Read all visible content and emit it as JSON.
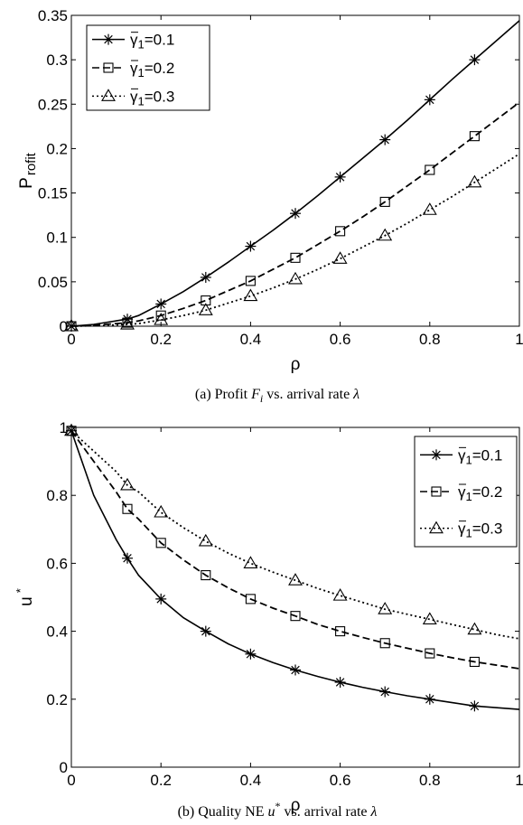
{
  "chart_data": [
    {
      "type": "line",
      "caption": "(a) Profit F_i vs. arrival rate λ",
      "caption_parts": {
        "prefix": "(a)  Profit ",
        "var": "F",
        "sub": "i",
        "suffix": " vs. arrival rate ",
        "lambda": "λ"
      },
      "xlabel": "ρ",
      "ylabel": "Profit",
      "ylabel_parts": {
        "first": "P",
        "rest": "rofit"
      },
      "xlim": [
        0,
        1
      ],
      "ylim": [
        0,
        0.35
      ],
      "xticks": [
        0,
        0.2,
        0.4,
        0.6,
        0.8,
        1
      ],
      "xtick_labels": [
        "0",
        "0.2",
        "0.4",
        "0.6",
        "0.8",
        "1"
      ],
      "yticks": [
        0,
        0.05,
        0.1,
        0.15,
        0.2,
        0.25,
        0.3,
        0.35
      ],
      "ytick_labels": [
        "0",
        "0.05",
        "0.1",
        "0.15",
        "0.2",
        "0.25",
        "0.3",
        "0.35"
      ],
      "legend_position": "top-left",
      "series": [
        {
          "name": "γ̄1=0.1",
          "legend": {
            "sym": "γ",
            "sub": "1",
            "val": "=0.1"
          },
          "marker": "star",
          "dash": "solid",
          "x": [
            0,
            0.125,
            0.2,
            0.3,
            0.4,
            0.5,
            0.6,
            0.7,
            0.8,
            0.9
          ],
          "y": [
            0,
            0.008,
            0.025,
            0.055,
            0.09,
            0.127,
            0.168,
            0.21,
            0.255,
            0.3
          ],
          "curve_x": [
            0,
            0.05,
            0.1,
            0.125,
            0.15,
            0.2,
            0.25,
            0.3,
            0.35,
            0.4,
            0.45,
            0.5,
            0.55,
            0.6,
            0.65,
            0.7,
            0.75,
            0.8,
            0.85,
            0.9,
            0.95,
            1
          ],
          "curve_y": [
            0,
            0.002,
            0.006,
            0.008,
            0.012,
            0.025,
            0.039,
            0.055,
            0.072,
            0.09,
            0.108,
            0.127,
            0.147,
            0.168,
            0.189,
            0.21,
            0.232,
            0.255,
            0.278,
            0.3,
            0.322,
            0.344
          ]
        },
        {
          "name": "γ̄1=0.2",
          "legend": {
            "sym": "γ",
            "sub": "1",
            "val": "=0.2"
          },
          "marker": "square",
          "dash": "dashed",
          "x": [
            0,
            0.125,
            0.2,
            0.3,
            0.4,
            0.5,
            0.6,
            0.7,
            0.8,
            0.9
          ],
          "y": [
            0,
            0.004,
            0.012,
            0.029,
            0.051,
            0.077,
            0.107,
            0.14,
            0.176,
            0.214
          ],
          "curve_x": [
            0,
            0.05,
            0.1,
            0.125,
            0.15,
            0.2,
            0.25,
            0.3,
            0.35,
            0.4,
            0.45,
            0.5,
            0.55,
            0.6,
            0.65,
            0.7,
            0.75,
            0.8,
            0.85,
            0.9,
            0.95,
            1
          ],
          "curve_y": [
            0,
            0.001,
            0.003,
            0.004,
            0.006,
            0.012,
            0.02,
            0.029,
            0.04,
            0.051,
            0.064,
            0.077,
            0.092,
            0.107,
            0.123,
            0.14,
            0.158,
            0.176,
            0.195,
            0.214,
            0.233,
            0.252
          ]
        },
        {
          "name": "γ̄1=0.3",
          "legend": {
            "sym": "γ",
            "sub": "1",
            "val": "=0.3"
          },
          "marker": "triangle",
          "dash": "dotted",
          "x": [
            0,
            0.125,
            0.2,
            0.3,
            0.4,
            0.5,
            0.6,
            0.7,
            0.8,
            0.9
          ],
          "y": [
            0,
            0.002,
            0.007,
            0.018,
            0.034,
            0.053,
            0.076,
            0.102,
            0.131,
            0.162
          ],
          "curve_x": [
            0,
            0.05,
            0.1,
            0.125,
            0.15,
            0.2,
            0.25,
            0.3,
            0.35,
            0.4,
            0.45,
            0.5,
            0.55,
            0.6,
            0.65,
            0.7,
            0.75,
            0.8,
            0.85,
            0.9,
            0.95,
            1
          ],
          "curve_y": [
            0,
            0.0005,
            0.0015,
            0.002,
            0.003,
            0.007,
            0.012,
            0.018,
            0.026,
            0.034,
            0.043,
            0.053,
            0.064,
            0.076,
            0.089,
            0.102,
            0.116,
            0.131,
            0.146,
            0.162,
            0.178,
            0.194
          ]
        }
      ]
    },
    {
      "type": "line",
      "caption": "(b) Quality NE u* vs. arrival rate λ",
      "caption_parts": {
        "prefix": "(b)  Quality NE ",
        "var": "u",
        "sup": "*",
        "suffix": " vs. arrival rate ",
        "lambda": "λ"
      },
      "xlabel": "ρ",
      "ylabel": "u*",
      "ylabel_parts": {
        "base": "u",
        "sup": "*"
      },
      "xlim": [
        0,
        1
      ],
      "ylim": [
        0,
        1
      ],
      "xticks": [
        0,
        0.2,
        0.4,
        0.6,
        0.8,
        1
      ],
      "xtick_labels": [
        "0",
        "0.2",
        "0.4",
        "0.6",
        "0.8",
        "1"
      ],
      "yticks": [
        0,
        0.2,
        0.4,
        0.6,
        0.8,
        1
      ],
      "ytick_labels": [
        "0",
        "0.2",
        "0.4",
        "0.6",
        "0.8",
        "1"
      ],
      "legend_position": "top-right",
      "series": [
        {
          "name": "γ̄1=0.1",
          "legend": {
            "sym": "γ",
            "sub": "1",
            "val": "=0.1"
          },
          "marker": "star",
          "dash": "solid",
          "x": [
            0,
            0.125,
            0.2,
            0.3,
            0.4,
            0.5,
            0.6,
            0.7,
            0.8,
            0.9
          ],
          "y": [
            0.99,
            0.615,
            0.495,
            0.4,
            0.333,
            0.286,
            0.25,
            0.222,
            0.2,
            0.18
          ],
          "curve_x": [
            0,
            0.05,
            0.1,
            0.125,
            0.15,
            0.2,
            0.25,
            0.3,
            0.35,
            0.4,
            0.45,
            0.5,
            0.55,
            0.6,
            0.65,
            0.7,
            0.75,
            0.8,
            0.85,
            0.9,
            0.95,
            1
          ],
          "curve_y": [
            0.99,
            0.8,
            0.67,
            0.615,
            0.565,
            0.495,
            0.44,
            0.4,
            0.363,
            0.333,
            0.308,
            0.286,
            0.267,
            0.25,
            0.235,
            0.222,
            0.21,
            0.2,
            0.19,
            0.18,
            0.175,
            0.17
          ]
        },
        {
          "name": "γ̄1=0.2",
          "legend": {
            "sym": "γ",
            "sub": "1",
            "val": "=0.2"
          },
          "marker": "square",
          "dash": "dashed",
          "x": [
            0,
            0.125,
            0.2,
            0.3,
            0.4,
            0.5,
            0.6,
            0.7,
            0.8,
            0.9
          ],
          "y": [
            0.99,
            0.76,
            0.66,
            0.565,
            0.495,
            0.445,
            0.4,
            0.365,
            0.335,
            0.31
          ],
          "curve_x": [
            0,
            0.05,
            0.1,
            0.125,
            0.15,
            0.2,
            0.25,
            0.3,
            0.35,
            0.4,
            0.45,
            0.5,
            0.55,
            0.6,
            0.65,
            0.7,
            0.75,
            0.8,
            0.85,
            0.9,
            0.95,
            1
          ],
          "curve_y": [
            0.99,
            0.9,
            0.81,
            0.76,
            0.73,
            0.66,
            0.61,
            0.565,
            0.528,
            0.495,
            0.468,
            0.445,
            0.42,
            0.4,
            0.382,
            0.365,
            0.35,
            0.335,
            0.322,
            0.31,
            0.3,
            0.29
          ]
        },
        {
          "name": "γ̄1=0.3",
          "legend": {
            "sym": "γ",
            "sub": "1",
            "val": "=0.3"
          },
          "marker": "triangle",
          "dash": "dotted",
          "x": [
            0,
            0.125,
            0.2,
            0.3,
            0.4,
            0.5,
            0.6,
            0.7,
            0.8,
            0.9
          ],
          "y": [
            0.99,
            0.83,
            0.75,
            0.665,
            0.6,
            0.55,
            0.505,
            0.465,
            0.435,
            0.405
          ],
          "curve_x": [
            0,
            0.05,
            0.1,
            0.125,
            0.15,
            0.2,
            0.25,
            0.3,
            0.35,
            0.4,
            0.45,
            0.5,
            0.55,
            0.6,
            0.65,
            0.7,
            0.75,
            0.8,
            0.85,
            0.9,
            0.95,
            1
          ],
          "curve_y": [
            0.99,
            0.93,
            0.87,
            0.83,
            0.81,
            0.75,
            0.705,
            0.665,
            0.63,
            0.6,
            0.574,
            0.55,
            0.526,
            0.505,
            0.485,
            0.465,
            0.45,
            0.435,
            0.42,
            0.405,
            0.39,
            0.378
          ]
        }
      ]
    }
  ]
}
